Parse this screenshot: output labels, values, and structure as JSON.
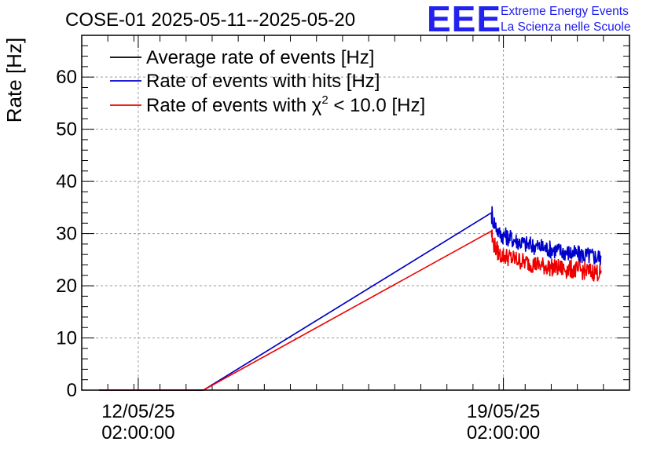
{
  "chart_data": {
    "type": "line",
    "title": "COSE-01 2025-05-11--2025-05-20",
    "xlabel": "",
    "ylabel": "Rate [Hz]",
    "ylim": [
      0,
      68
    ],
    "xlim": [
      "2025-05-11 00:00:00",
      "2025-05-21 12:00:00"
    ],
    "yticks": [
      0,
      10,
      20,
      30,
      40,
      50,
      60
    ],
    "xticks": [
      {
        "date": "2025-05-12 02:00:00",
        "label_date": "12/05/25",
        "label_time": "02:00:00"
      },
      {
        "date": "2025-05-19 02:00:00",
        "label_date": "19/05/25",
        "label_time": "02:00:00"
      }
    ],
    "grid": true,
    "legend_position": "top-left",
    "series": [
      {
        "name": "Average rate of events [Hz]",
        "color": "#000000",
        "x": [
          "2025-05-11 08:00:00",
          "2025-05-13 08:00:00",
          "2025-05-18 20:30:00"
        ],
        "y": [
          0,
          0,
          34
        ]
      },
      {
        "name": "Rate of events with hits [Hz]",
        "color": "#0000cc",
        "x": [
          "2025-05-11 08:00:00",
          "2025-05-13 08:00:00",
          "2025-05-18 20:30:00",
          "2025-05-18 21:00:00",
          "2025-05-19 00:00:00",
          "2025-05-19 12:00:00",
          "2025-05-20 00:00:00",
          "2025-05-20 12:00:00",
          "2025-05-20 23:00:00"
        ],
        "y": [
          0,
          0,
          34,
          33,
          30,
          28,
          27,
          26,
          25.5
        ]
      },
      {
        "name": "Rate of events with χ² < 10.0 [Hz]",
        "name_parts": [
          "Rate of events with χ",
          "2",
          " < 10.0 [Hz]"
        ],
        "color": "#ee0000",
        "x": [
          "2025-05-11 08:00:00",
          "2025-05-13 08:00:00",
          "2025-05-18 20:30:00",
          "2025-05-18 21:00:00",
          "2025-05-19 00:00:00",
          "2025-05-19 12:00:00",
          "2025-05-20 00:00:00",
          "2025-05-20 12:00:00",
          "2025-05-20 23:00:00"
        ],
        "y": [
          0,
          0,
          30.5,
          28.5,
          26,
          24.5,
          23.5,
          23,
          22.5
        ]
      }
    ]
  },
  "logo": {
    "mark": "EEE",
    "line1": "Extreme Energy Events",
    "line2": "La Scienza nelle Scuole",
    "color": "#2222ee"
  }
}
